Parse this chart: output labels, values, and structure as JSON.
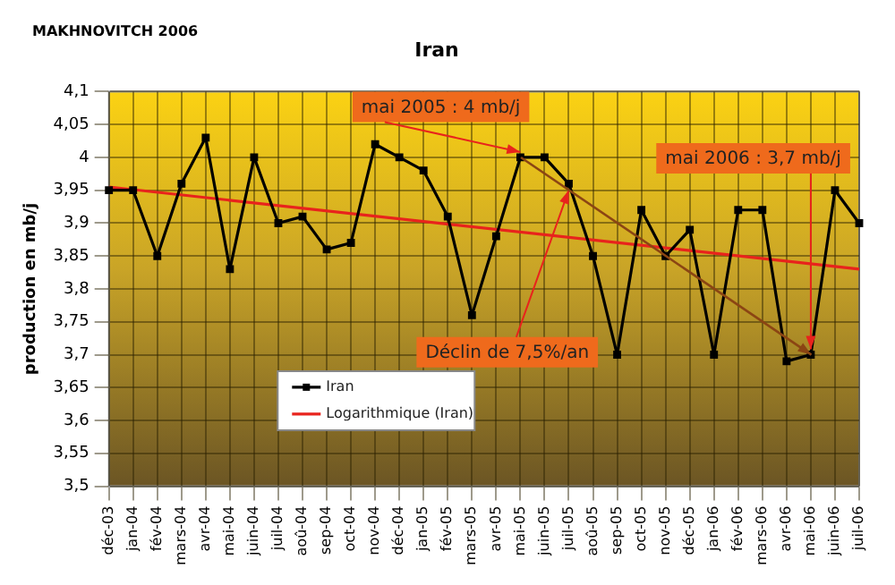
{
  "chart_data": {
    "type": "line",
    "title": "Iran",
    "ylabel": "production en mb/j",
    "categories": [
      "déc-03",
      "jan-04",
      "fév-04",
      "mars-04",
      "avr-04",
      "mai-04",
      "juin-04",
      "juil-04",
      "aoû-04",
      "sep-04",
      "oct-04",
      "nov-04",
      "déc-04",
      "jan-05",
      "fév-05",
      "mars-05",
      "avr-05",
      "mai-05",
      "juin-05",
      "juil-05",
      "aoû-05",
      "sep-05",
      "oct-05",
      "nov-05",
      "déc-05",
      "jan-06",
      "fév-06",
      "mars-06",
      "avr-06",
      "mai-06",
      "juin-06",
      "juil-06"
    ],
    "series": [
      {
        "name": "Iran",
        "color": "#000000",
        "marker": "square",
        "values": [
          3.95,
          3.95,
          3.85,
          3.96,
          4.03,
          3.83,
          4.0,
          3.9,
          3.91,
          3.86,
          3.87,
          4.02,
          4.0,
          3.98,
          3.91,
          3.76,
          3.88,
          4.0,
          4.0,
          3.96,
          3.85,
          3.7,
          3.92,
          3.85,
          3.89,
          3.7,
          3.92,
          3.92,
          3.69,
          3.7,
          3.95,
          3.9
        ]
      },
      {
        "name": "Logarithmique (Iran)",
        "color": "#e8231c",
        "marker": "none",
        "x": [
          "déc-03",
          "juil-06"
        ],
        "values": [
          3.955,
          3.83
        ]
      }
    ],
    "ylim": [
      3.5,
      4.1
    ],
    "yticks": [
      {
        "value": 3.5,
        "label": "3,5"
      },
      {
        "value": 3.55,
        "label": "3,55"
      },
      {
        "value": 3.6,
        "label": "3,6"
      },
      {
        "value": 3.65,
        "label": "3,65"
      },
      {
        "value": 3.7,
        "label": "3,7"
      },
      {
        "value": 3.75,
        "label": "3,75"
      },
      {
        "value": 3.8,
        "label": "3,8"
      },
      {
        "value": 3.85,
        "label": "3,85"
      },
      {
        "value": 3.9,
        "label": "3,9"
      },
      {
        "value": 3.95,
        "label": "3,95"
      },
      {
        "value": 4,
        "label": "4"
      },
      {
        "value": 4.05,
        "label": "4,05"
      },
      {
        "value": 4.1,
        "label": "4,1"
      }
    ],
    "grid": true,
    "legend": "bottom left",
    "annotations": [
      "MAKHNOVITCH 2006",
      {
        "text": "mai 2005 : 4 mb/j",
        "x": "mai-05",
        "y": 4
      },
      {
        "text": "mai 2006 : 3,7 mb/j",
        "x": "mai-06",
        "y": 3.7
      },
      {
        "text": "Déclin de 7,5%/an",
        "x": "juil-05",
        "y": 3.95
      }
    ]
  }
}
